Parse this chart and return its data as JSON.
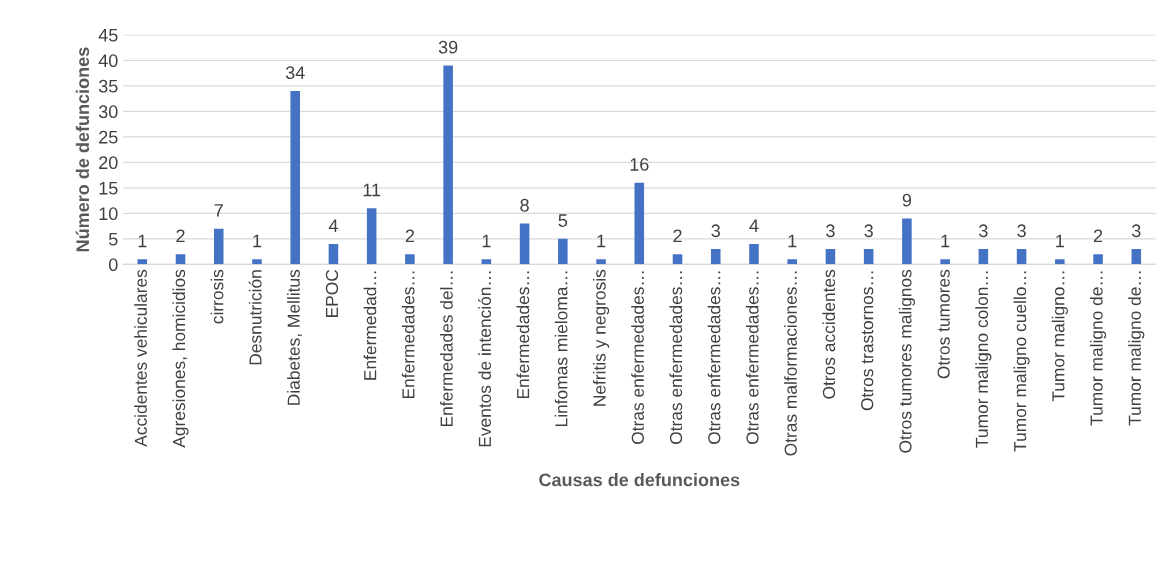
{
  "chart_data": {
    "type": "bar",
    "xlabel": "Causas de defunciones",
    "ylabel": "Número de defunciones",
    "categories": [
      "Accidentes vehiculares",
      "Agresiones, homicidios",
      "cirrosis",
      "Desnutrición",
      "Diabetes, Mellitus",
      "EPOC",
      "Enfermedad…",
      "Enfermedades…",
      "Enfermedades del…",
      "Eventos de intención…",
      "Enfermedades…",
      "Linfomas mieloma…",
      "Nefritis y negrosis",
      "Otras enfermedades…",
      "Otras enfermedades…",
      "Otras enfermedades…",
      "Otras enfermedades…",
      "Otras malformaciones…",
      "Otros accidentes",
      "Otros trastornos…",
      "Otros tumores malignos",
      "Otros tumores",
      "Tumor maligno colon…",
      "Tumor maligno cuello…",
      "Tumor maligno…",
      "Tumor maligno de…",
      "Tumor maligno de…"
    ],
    "values": [
      1,
      2,
      7,
      1,
      34,
      4,
      11,
      2,
      39,
      1,
      8,
      5,
      1,
      16,
      2,
      3,
      4,
      1,
      3,
      3,
      9,
      1,
      3,
      3,
      1,
      2,
      3
    ],
    "color": "#4472c4",
    "ylim": [
      0,
      45
    ],
    "yticks": [
      0,
      5,
      10,
      15,
      20,
      25,
      30,
      35,
      40,
      45
    ],
    "grid": "y",
    "data_labels": true
  }
}
